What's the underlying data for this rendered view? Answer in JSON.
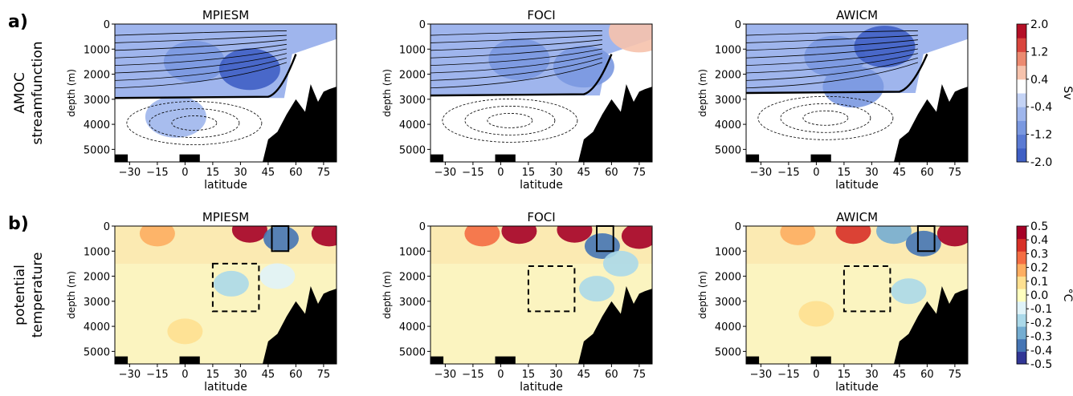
{
  "chart_data": [
    {
      "type": "heatmap",
      "panel_label": "a)",
      "row_label": [
        "AMOC",
        "streamfunction"
      ],
      "titles": [
        "MPIESM",
        "FOCI",
        "AWICM"
      ],
      "xlabel": "latitude",
      "ylabel": "depth (m)",
      "x_ticks": [
        -30,
        -15,
        0,
        15,
        30,
        45,
        60,
        75
      ],
      "xlim": [
        -38,
        82
      ],
      "y_ticks": [
        0,
        1000,
        2000,
        3000,
        4000,
        5000
      ],
      "ylim": [
        5500,
        0
      ],
      "colorbar": {
        "label": "Sv",
        "ticks": [
          "2.0",
          "1.2",
          "0.4",
          "-0.4",
          "-1.2",
          "-2.0"
        ],
        "range": [
          -2.0,
          2.0
        ],
        "levels": 10,
        "colors": [
          "#3f5fc4",
          "#5a7ad3",
          "#7a98e0",
          "#9fb6ec",
          "#c4d3f5",
          "#ffffff",
          "#f6c2ac",
          "#ec8a70",
          "#d9453d",
          "#b40f26"
        ]
      },
      "zero_contour_depth": {
        "MPIESM": 2950,
        "FOCI": 2850,
        "AWICM": 2750
      },
      "anomaly_fields": [
        {
          "model": "MPIESM",
          "blobs": [
            {
              "lat": 5,
              "depth": 1500,
              "value": -1.2
            },
            {
              "lat": 35,
              "depth": 1800,
              "value": -1.7
            },
            {
              "lat": -5,
              "depth": 3700,
              "value": -0.7
            }
          ]
        },
        {
          "model": "FOCI",
          "blobs": [
            {
              "lat": 10,
              "depth": 1400,
              "value": -1.2
            },
            {
              "lat": 45,
              "depth": 1700,
              "value": -1.0
            },
            {
              "lat": 75,
              "depth": 300,
              "value": 0.6
            }
          ]
        },
        {
          "model": "AWICM",
          "blobs": [
            {
              "lat": 10,
              "depth": 1300,
              "value": -1.1
            },
            {
              "lat": 37,
              "depth": 900,
              "value": -1.7
            },
            {
              "lat": 20,
              "depth": 2500,
              "value": -0.9
            }
          ]
        }
      ]
    },
    {
      "type": "heatmap",
      "panel_label": "b)",
      "row_label": [
        "potential",
        "temperature"
      ],
      "titles": [
        "MPIESM",
        "FOCI",
        "AWICM"
      ],
      "xlabel": "latitude",
      "ylabel": "depth (m)",
      "x_ticks": [
        -30,
        -15,
        0,
        15,
        30,
        45,
        60,
        75
      ],
      "xlim": [
        -38,
        82
      ],
      "y_ticks": [
        0,
        1000,
        2000,
        3000,
        4000,
        5000
      ],
      "ylim": [
        5500,
        0
      ],
      "colorbar": {
        "label": "°C",
        "ticks": [
          "0.5",
          "0.4",
          "0.3",
          "0.2",
          "0.1",
          "0.0",
          "-0.1",
          "-0.2",
          "-0.3",
          "-0.4",
          "-0.5"
        ],
        "range": [
          -0.5,
          0.5
        ],
        "colors": [
          "#313695",
          "#4575b4",
          "#74add1",
          "#abd9e9",
          "#e0f3f8",
          "#ffffbf",
          "#fee090",
          "#fdae61",
          "#f46d43",
          "#d73027",
          "#a50026"
        ]
      },
      "boxes": [
        {
          "model": "MPIESM",
          "solid": {
            "lat": [
              47,
              56
            ],
            "depth": [
              0,
              1000
            ]
          },
          "dashed": {
            "lat": [
              15,
              40
            ],
            "depth": [
              1500,
              3400
            ]
          }
        },
        {
          "model": "FOCI",
          "solid": {
            "lat": [
              52,
              61
            ],
            "depth": [
              0,
              1000
            ]
          },
          "dashed": {
            "lat": [
              15,
              40
            ],
            "depth": [
              1600,
              3400
            ]
          }
        },
        {
          "model": "AWICM",
          "solid": {
            "lat": [
              55,
              64
            ],
            "depth": [
              0,
              1000
            ]
          },
          "dashed": {
            "lat": [
              15,
              40
            ],
            "depth": [
              1600,
              3400
            ]
          }
        }
      ],
      "anomaly_fields": [
        {
          "model": "MPIESM",
          "blobs": [
            {
              "lat": -15,
              "depth": 300,
              "value": 0.2
            },
            {
              "lat": 35,
              "depth": 150,
              "value": 0.45
            },
            {
              "lat": 52,
              "depth": 500,
              "value": -0.4
            },
            {
              "lat": 50,
              "depth": 2000,
              "value": -0.1
            },
            {
              "lat": 25,
              "depth": 2300,
              "value": -0.15
            },
            {
              "lat": 78,
              "depth": 300,
              "value": 0.5
            },
            {
              "lat": 0,
              "depth": 4200,
              "value": 0.05
            }
          ]
        },
        {
          "model": "FOCI",
          "blobs": [
            {
              "lat": -10,
              "depth": 300,
              "value": 0.25
            },
            {
              "lat": 10,
              "depth": 200,
              "value": 0.45
            },
            {
              "lat": 40,
              "depth": 150,
              "value": 0.45
            },
            {
              "lat": 55,
              "depth": 800,
              "value": -0.4
            },
            {
              "lat": 52,
              "depth": 2500,
              "value": -0.2
            },
            {
              "lat": 75,
              "depth": 400,
              "value": 0.5
            },
            {
              "lat": 65,
              "depth": 1500,
              "value": -0.15
            }
          ]
        },
        {
          "model": "AWICM",
          "blobs": [
            {
              "lat": -10,
              "depth": 250,
              "value": 0.2
            },
            {
              "lat": 20,
              "depth": 200,
              "value": 0.4
            },
            {
              "lat": 42,
              "depth": 200,
              "value": -0.3
            },
            {
              "lat": 58,
              "depth": 700,
              "value": -0.35
            },
            {
              "lat": 50,
              "depth": 2600,
              "value": -0.2
            },
            {
              "lat": 75,
              "depth": 300,
              "value": 0.45
            },
            {
              "lat": 0,
              "depth": 3500,
              "value": 0.05
            }
          ]
        }
      ]
    }
  ],
  "bathymetry_profile": [
    {
      "lat": 45,
      "depth": 4600
    },
    {
      "lat": 50,
      "depth": 4300
    },
    {
      "lat": 55,
      "depth": 3600
    },
    {
      "lat": 60,
      "depth": 3000
    },
    {
      "lat": 65,
      "depth": 3500
    },
    {
      "lat": 68,
      "depth": 2400
    },
    {
      "lat": 72,
      "depth": 3100
    },
    {
      "lat": 75,
      "depth": 2700
    },
    {
      "lat": 78,
      "depth": 2600
    },
    {
      "lat": 82,
      "depth": 2500
    }
  ]
}
